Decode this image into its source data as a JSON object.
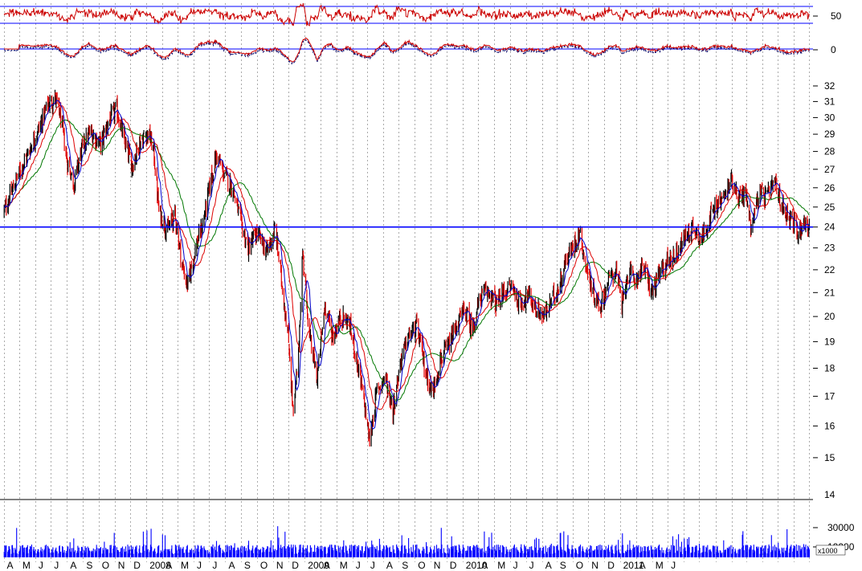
{
  "chart_data": {
    "type": "candlestick",
    "title": "",
    "colors": {
      "background": "#ffffff",
      "up_candle": "#000000",
      "down_candle": "#e00000",
      "ma_short": "#0000cc",
      "ma_medium": "#dd0000",
      "ma_long": "#007700",
      "support_line": "#0000ff",
      "gridline": "#aaaaaa",
      "volume_bars": "#0000ff",
      "oscillator_main": "#cc0000",
      "oscillator_signal": "#000066"
    },
    "x_axis": {
      "labels": [
        "A",
        "M",
        "J",
        "J",
        "A",
        "S",
        "O",
        "N",
        "D",
        "2008",
        "A",
        "M",
        "J",
        "J",
        "A",
        "S",
        "O",
        "N",
        "D",
        "2009",
        "A",
        "M",
        "J",
        "J",
        "A",
        "S",
        "O",
        "N",
        "D",
        "2010",
        "A",
        "M",
        "J",
        "J",
        "A",
        "S",
        "O",
        "N",
        "D",
        "2011",
        "A",
        "M",
        "J"
      ]
    },
    "price_panel": {
      "y_ticks": [
        15,
        16,
        17,
        18,
        19,
        20,
        21,
        22,
        23,
        24,
        25,
        26,
        27,
        28,
        29,
        30,
        31,
        32
      ],
      "ylim": [
        14,
        32
      ],
      "support_level": 24,
      "close_series": [
        [
          "2007-04-02",
          24.8
        ],
        [
          "2007-05-01",
          26.8
        ],
        [
          "2007-05-20",
          28.0
        ],
        [
          "2007-06-10",
          29.5
        ],
        [
          "2007-06-25",
          30.8
        ],
        [
          "2007-07-10",
          31.2
        ],
        [
          "2007-07-20",
          30.0
        ],
        [
          "2007-08-01",
          27.5
        ],
        [
          "2007-08-15",
          26.2
        ],
        [
          "2007-08-28",
          28.0
        ],
        [
          "2007-09-15",
          29.2
        ],
        [
          "2007-10-05",
          28.4
        ],
        [
          "2007-10-20",
          29.8
        ],
        [
          "2007-11-05",
          30.5
        ],
        [
          "2007-11-20",
          28.5
        ],
        [
          "2007-12-05",
          27.2
        ],
        [
          "2007-12-20",
          28.6
        ],
        [
          "2008-01-05",
          29.1
        ],
        [
          "2008-01-15",
          28.0
        ],
        [
          "2008-01-25",
          24.8
        ],
        [
          "2008-02-10",
          23.8
        ],
        [
          "2008-02-25",
          24.6
        ],
        [
          "2008-03-10",
          22.2
        ],
        [
          "2008-03-20",
          21.3
        ],
        [
          "2008-04-05",
          23.0
        ],
        [
          "2008-04-20",
          24.3
        ],
        [
          "2008-05-05",
          26.5
        ],
        [
          "2008-05-15",
          27.8
        ],
        [
          "2008-05-30",
          26.7
        ],
        [
          "2008-06-15",
          26.0
        ],
        [
          "2008-07-01",
          24.2
        ],
        [
          "2008-07-15",
          23.0
        ],
        [
          "2008-08-01",
          23.7
        ],
        [
          "2008-08-20",
          22.8
        ],
        [
          "2008-09-05",
          23.9
        ],
        [
          "2008-09-20",
          21.0
        ],
        [
          "2008-10-01",
          19.0
        ],
        [
          "2008-10-10",
          16.3
        ],
        [
          "2008-10-20",
          18.5
        ],
        [
          "2008-10-28",
          22.8
        ],
        [
          "2008-11-10",
          19.2
        ],
        [
          "2008-11-25",
          17.6
        ],
        [
          "2008-12-10",
          20.5
        ],
        [
          "2008-12-25",
          19.2
        ],
        [
          "2009-01-10",
          20.0
        ],
        [
          "2009-01-25",
          19.8
        ],
        [
          "2009-02-10",
          18.2
        ],
        [
          "2009-02-25",
          16.6
        ],
        [
          "2009-03-06",
          15.5
        ],
        [
          "2009-03-20",
          17.2
        ],
        [
          "2009-04-05",
          17.7
        ],
        [
          "2009-04-20",
          16.5
        ],
        [
          "2009-05-05",
          18.3
        ],
        [
          "2009-05-20",
          19.2
        ],
        [
          "2009-06-05",
          19.6
        ],
        [
          "2009-06-20",
          18.0
        ],
        [
          "2009-07-05",
          17.1
        ],
        [
          "2009-07-20",
          18.3
        ],
        [
          "2009-08-05",
          18.8
        ],
        [
          "2009-08-20",
          19.6
        ],
        [
          "2009-09-05",
          20.3
        ],
        [
          "2009-09-20",
          19.5
        ],
        [
          "2009-10-05",
          20.8
        ],
        [
          "2009-10-20",
          21.1
        ],
        [
          "2009-11-05",
          20.5
        ],
        [
          "2009-11-20",
          21.0
        ],
        [
          "2009-12-05",
          21.3
        ],
        [
          "2009-12-20",
          20.5
        ],
        [
          "2010-01-05",
          20.9
        ],
        [
          "2010-01-20",
          20.3
        ],
        [
          "2010-02-05",
          20.0
        ],
        [
          "2010-02-20",
          20.7
        ],
        [
          "2010-03-05",
          21.2
        ],
        [
          "2010-03-20",
          22.5
        ],
        [
          "2010-04-01",
          23.0
        ],
        [
          "2010-04-15",
          23.8
        ],
        [
          "2010-04-25",
          22.3
        ],
        [
          "2010-05-10",
          21.0
        ],
        [
          "2010-05-25",
          20.4
        ],
        [
          "2010-06-10",
          21.6
        ],
        [
          "2010-06-25",
          22.0
        ],
        [
          "2010-07-05",
          20.3
        ],
        [
          "2010-07-15",
          21.8
        ],
        [
          "2010-08-01",
          21.6
        ],
        [
          "2010-08-15",
          22.2
        ],
        [
          "2010-09-01",
          21.0
        ],
        [
          "2010-09-15",
          21.8
        ],
        [
          "2010-10-01",
          22.4
        ],
        [
          "2010-10-20",
          22.8
        ],
        [
          "2010-11-05",
          23.6
        ],
        [
          "2010-11-20",
          24.0
        ],
        [
          "2010-12-05",
          23.4
        ],
        [
          "2010-12-20",
          24.4
        ],
        [
          "2011-01-05",
          25.1
        ],
        [
          "2011-01-20",
          25.6
        ],
        [
          "2011-02-01",
          26.5
        ],
        [
          "2011-02-15",
          25.5
        ],
        [
          "2011-03-01",
          25.7
        ],
        [
          "2011-03-10",
          24.0
        ],
        [
          "2011-03-25",
          25.6
        ],
        [
          "2011-04-10",
          25.5
        ],
        [
          "2011-04-25",
          26.3
        ],
        [
          "2011-05-10",
          25.0
        ],
        [
          "2011-05-25",
          24.5
        ],
        [
          "2011-06-10",
          23.7
        ],
        [
          "2011-06-20",
          24.3
        ],
        [
          "2011-07-01",
          24.0
        ]
      ]
    },
    "oscillator_panel": {
      "y_ticks": [
        0,
        50
      ]
    },
    "volume_panel": {
      "y_ticks": [
        10000,
        30000
      ],
      "multiplier_label": "x1000"
    }
  }
}
